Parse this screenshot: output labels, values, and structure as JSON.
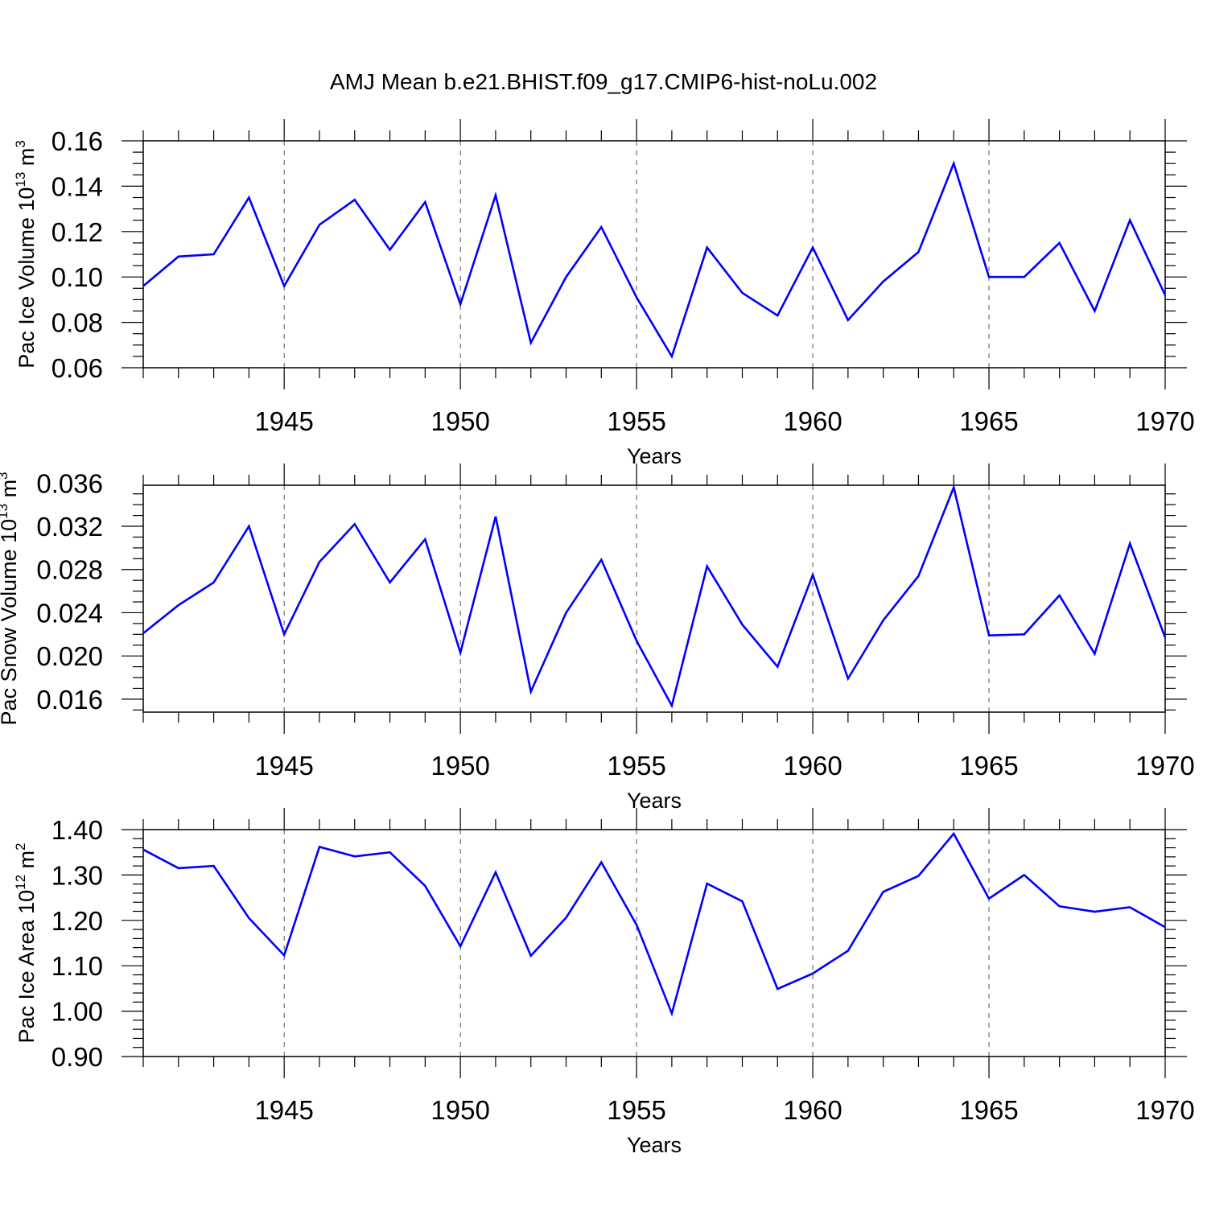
{
  "title": "AMJ Mean b.e21.BHIST.f09_g17.CMIP6-hist-noLu.002",
  "colors": {
    "line": "#0000ff",
    "grid": "#555555",
    "frame": "#000000"
  },
  "chart_data": [
    {
      "type": "line",
      "ylabel": "Pac Ice Volume 10",
      "ylabel_exp": "13",
      "ylabel_unit": " m",
      "ylabel_unit_exp": "3",
      "xlabel": "Years",
      "xlim": [
        1941,
        1970
      ],
      "ylim": [
        0.06,
        0.16
      ],
      "yticks": [
        0.06,
        0.08,
        0.1,
        0.12,
        0.14,
        0.16
      ],
      "ytick_labels": [
        "0.06",
        "0.08",
        "0.10",
        "0.12",
        "0.14",
        "0.16"
      ],
      "yminor_step": 0.005,
      "xticks": [
        1945,
        1950,
        1955,
        1960,
        1965,
        1970
      ],
      "xtick_labels": [
        "1945",
        "1950",
        "1955",
        "1960",
        "1965",
        "1970"
      ],
      "grid": "x-dashed",
      "x": [
        1941,
        1942,
        1943,
        1944,
        1945,
        1946,
        1947,
        1948,
        1949,
        1950,
        1951,
        1952,
        1953,
        1954,
        1955,
        1956,
        1957,
        1958,
        1959,
        1960,
        1961,
        1962,
        1963,
        1964,
        1965,
        1966,
        1967,
        1968,
        1969,
        1970
      ],
      "series": [
        {
          "values": [
            0.096,
            0.109,
            0.11,
            0.135,
            0.096,
            0.123,
            0.134,
            0.112,
            0.133,
            0.088,
            0.136,
            0.071,
            0.1,
            0.122,
            0.091,
            0.065,
            0.113,
            0.093,
            0.083,
            0.113,
            0.081,
            0.098,
            0.111,
            0.15,
            0.1,
            0.1,
            0.115,
            0.085,
            0.125,
            0.092
          ]
        }
      ]
    },
    {
      "type": "line",
      "ylabel": "Pac Snow Volume 10",
      "ylabel_exp": "13",
      "ylabel_unit": " m",
      "ylabel_unit_exp": "3",
      "xlabel": "Years",
      "xlim": [
        1941,
        1970
      ],
      "ylim": [
        0.0148,
        0.0358
      ],
      "yticks": [
        0.016,
        0.02,
        0.024,
        0.028,
        0.032,
        0.036
      ],
      "ytick_labels": [
        "0.016",
        "0.020",
        "0.024",
        "0.028",
        "0.032",
        "0.036"
      ],
      "yminor_step": 0.001,
      "xticks": [
        1945,
        1950,
        1955,
        1960,
        1965,
        1970
      ],
      "xtick_labels": [
        "1945",
        "1950",
        "1955",
        "1960",
        "1965",
        "1970"
      ],
      "grid": "x-dashed",
      "x": [
        1941,
        1942,
        1943,
        1944,
        1945,
        1946,
        1947,
        1948,
        1949,
        1950,
        1951,
        1952,
        1953,
        1954,
        1955,
        1956,
        1957,
        1958,
        1959,
        1960,
        1961,
        1962,
        1963,
        1964,
        1965,
        1966,
        1967,
        1968,
        1969,
        1970
      ],
      "series": [
        {
          "values": [
            0.0221,
            0.0247,
            0.0268,
            0.032,
            0.022,
            0.0287,
            0.0322,
            0.0268,
            0.0308,
            0.0203,
            0.0329,
            0.0167,
            0.024,
            0.0289,
            0.0214,
            0.0154,
            0.0283,
            0.0229,
            0.019,
            0.0275,
            0.0179,
            0.0233,
            0.0274,
            0.0356,
            0.0219,
            0.022,
            0.0256,
            0.0202,
            0.0304,
            0.0217
          ]
        }
      ]
    },
    {
      "type": "line",
      "ylabel": "Pac Ice Area 10",
      "ylabel_exp": "12",
      "ylabel_unit": " m",
      "ylabel_unit_exp": "2",
      "xlabel": "Years",
      "xlim": [
        1941,
        1970
      ],
      "ylim": [
        0.9,
        1.4
      ],
      "yticks": [
        0.9,
        1.0,
        1.1,
        1.2,
        1.3,
        1.4
      ],
      "ytick_labels": [
        "0.90",
        "1.00",
        "1.10",
        "1.20",
        "1.30",
        "1.40"
      ],
      "yminor_step": 0.02,
      "xticks": [
        1945,
        1950,
        1955,
        1960,
        1965,
        1970
      ],
      "xtick_labels": [
        "1945",
        "1950",
        "1955",
        "1960",
        "1965",
        "1970"
      ],
      "grid": "x-dashed",
      "x": [
        1941,
        1942,
        1943,
        1944,
        1945,
        1946,
        1947,
        1948,
        1949,
        1950,
        1951,
        1952,
        1953,
        1954,
        1955,
        1956,
        1957,
        1958,
        1959,
        1960,
        1961,
        1962,
        1963,
        1964,
        1965,
        1966,
        1967,
        1968,
        1969,
        1970
      ],
      "series": [
        {
          "values": [
            1.356,
            1.315,
            1.32,
            1.205,
            1.123,
            1.362,
            1.341,
            1.35,
            1.276,
            1.143,
            1.306,
            1.122,
            1.206,
            1.328,
            1.19,
            0.995,
            1.281,
            1.242,
            1.049,
            1.083,
            1.133,
            1.263,
            1.298,
            1.391,
            1.248,
            1.3,
            1.231,
            1.219,
            1.229,
            1.185
          ]
        }
      ]
    }
  ]
}
